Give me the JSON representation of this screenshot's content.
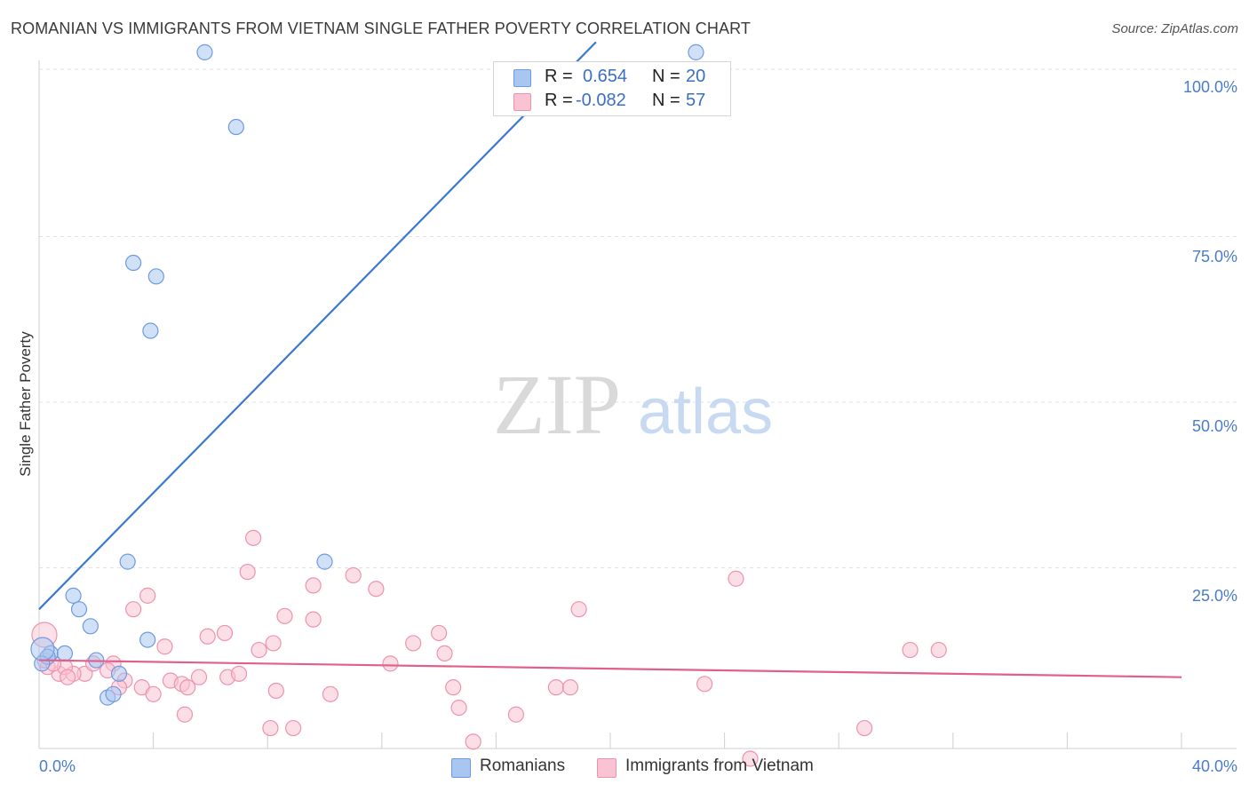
{
  "title": "ROMANIAN VS IMMIGRANTS FROM VIETNAM SINGLE FATHER POVERTY CORRELATION CHART",
  "source": "Source: ZipAtlas.com",
  "watermark": {
    "zip": "ZIP",
    "atlas": "atlas"
  },
  "legend": {
    "rows": [
      {
        "r_label": "R =",
        "r_value": "0.654",
        "n_label": "N =",
        "n_value": "20",
        "color": "#a9c6f0",
        "border": "#6e9be0"
      },
      {
        "r_label": "R =",
        "r_value": "-0.082",
        "n_label": "N =",
        "n_value": "57",
        "color": "#f9c3d3",
        "border": "#ee93ae"
      }
    ]
  },
  "bottom_legend": {
    "romanians": "Romanians",
    "vietnam": "Immigrants from Vietnam"
  },
  "chart_data": {
    "type": "scatter",
    "title": "ROMANIAN VS IMMIGRANTS FROM VIETNAM SINGLE FATHER POVERTY CORRELATION CHART",
    "xlabel": "",
    "ylabel": "Single Father Poverty",
    "xlim": [
      0,
      40
    ],
    "ylim": [
      0,
      100
    ],
    "x_tick_labels": [
      "0.0%",
      "40.0%"
    ],
    "y_tick_labels": [
      "100.0%",
      "75.0%",
      "50.0%",
      "25.0%"
    ],
    "y_ticks": [
      100,
      75,
      50,
      25
    ],
    "series": [
      {
        "name": "Romanians",
        "color": "#a9c6f0",
        "stroke": "#6e9be0",
        "line_color": "#3b78d4",
        "trend": {
          "x0": 0,
          "y0": 20.5,
          "x1": 19.5,
          "y1": 104
        },
        "points": [
          [
            5.8,
            102.5
          ],
          [
            6.9,
            91.5
          ],
          [
            3.3,
            71.5
          ],
          [
            4.1,
            69.5
          ],
          [
            3.9,
            61.5
          ],
          [
            23.0,
            102.5
          ],
          [
            3.1,
            27.5
          ],
          [
            10.0,
            27.5
          ],
          [
            1.2,
            22.5
          ],
          [
            1.4,
            20.5
          ],
          [
            1.8,
            18.0
          ],
          [
            3.8,
            16.0
          ],
          [
            0.4,
            14.0
          ],
          [
            0.9,
            14.0
          ],
          [
            2.0,
            13.0
          ],
          [
            0.3,
            13.5
          ],
          [
            2.8,
            11.0
          ],
          [
            2.4,
            7.5
          ],
          [
            2.6,
            8.0
          ],
          [
            0.1,
            12.5
          ]
        ]
      },
      {
        "name": "Immigrants from Vietnam",
        "color": "#f9c3d3",
        "stroke": "#ee93ae",
        "line_color": "#e0608c",
        "trend": {
          "x0": 0,
          "y0": 13.0,
          "x1": 40,
          "y1": 10.5
        },
        "points": [
          [
            7.5,
            31.0
          ],
          [
            7.3,
            26.0
          ],
          [
            9.6,
            24.0
          ],
          [
            11.0,
            25.5
          ],
          [
            11.8,
            23.5
          ],
          [
            3.8,
            22.5
          ],
          [
            3.3,
            20.5
          ],
          [
            8.6,
            19.5
          ],
          [
            9.6,
            19.0
          ],
          [
            6.5,
            17.0
          ],
          [
            5.9,
            16.5
          ],
          [
            14.0,
            17.0
          ],
          [
            8.2,
            15.5
          ],
          [
            4.4,
            15.0
          ],
          [
            7.7,
            14.5
          ],
          [
            13.1,
            15.5
          ],
          [
            14.2,
            14.0
          ],
          [
            2.6,
            12.5
          ],
          [
            1.6,
            11.0
          ],
          [
            2.4,
            11.5
          ],
          [
            3.0,
            10.0
          ],
          [
            4.6,
            10.0
          ],
          [
            5.0,
            9.5
          ],
          [
            5.6,
            10.5
          ],
          [
            6.6,
            10.5
          ],
          [
            1.2,
            11.0
          ],
          [
            0.7,
            11.0
          ],
          [
            0.3,
            12.0
          ],
          [
            0.9,
            12.0
          ],
          [
            0.2,
            13.0
          ],
          [
            2.8,
            9.0
          ],
          [
            3.6,
            9.0
          ],
          [
            4.0,
            8.0
          ],
          [
            5.2,
            9.0
          ],
          [
            8.3,
            8.5
          ],
          [
            10.2,
            8.0
          ],
          [
            14.5,
            9.0
          ],
          [
            18.1,
            9.0
          ],
          [
            18.6,
            9.0
          ],
          [
            23.3,
            9.5
          ],
          [
            14.7,
            6.0
          ],
          [
            5.1,
            5.0
          ],
          [
            16.7,
            5.0
          ],
          [
            8.1,
            3.0
          ],
          [
            8.9,
            3.0
          ],
          [
            15.2,
            1.0
          ],
          [
            24.4,
            25.0
          ],
          [
            18.9,
            20.5
          ],
          [
            30.5,
            14.5
          ],
          [
            31.5,
            14.5
          ],
          [
            28.9,
            3.0
          ],
          [
            24.9,
            -1.5
          ],
          [
            7.0,
            11.0
          ],
          [
            1.0,
            10.5
          ],
          [
            0.5,
            12.5
          ],
          [
            12.3,
            12.5
          ],
          [
            1.9,
            12.5
          ]
        ]
      }
    ]
  }
}
